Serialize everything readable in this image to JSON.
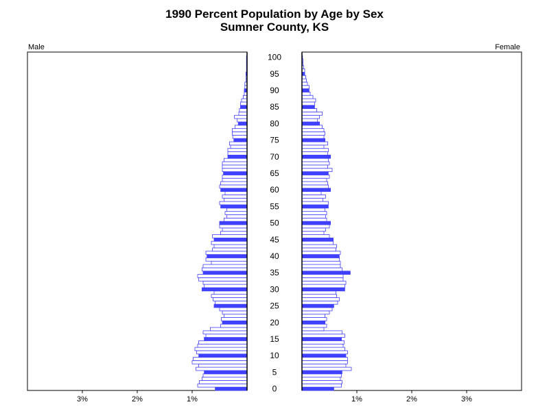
{
  "chart_data": {
    "type": "bar",
    "title": "1990 Percent Population by Age by Sex",
    "subtitle": "Sumner County, KS",
    "left_label": "Male",
    "right_label": "Female",
    "xlim": [
      0,
      4
    ],
    "x_ticks": [
      1,
      2,
      3
    ],
    "x_tick_labels": [
      "1%",
      "2%",
      "3%"
    ],
    "age_labels": [
      0,
      5,
      10,
      15,
      20,
      25,
      30,
      35,
      40,
      45,
      50,
      55,
      60,
      65,
      70,
      75,
      80,
      85,
      90,
      95,
      100
    ],
    "highlight_every": 5,
    "colors": {
      "bar_fill": "#ffffff",
      "bar_stroke": "#4040ff",
      "highlight": "#4040ff",
      "axis": "#000000"
    },
    "series": [
      {
        "name": "Male",
        "ages": [
          0,
          1,
          2,
          3,
          4,
          5,
          6,
          7,
          8,
          9,
          10,
          11,
          12,
          13,
          14,
          15,
          16,
          17,
          18,
          19,
          20,
          21,
          22,
          23,
          24,
          25,
          26,
          27,
          28,
          29,
          30,
          31,
          32,
          33,
          34,
          35,
          36,
          37,
          38,
          39,
          40,
          41,
          42,
          43,
          44,
          45,
          46,
          47,
          48,
          49,
          50,
          51,
          52,
          53,
          54,
          55,
          56,
          57,
          58,
          59,
          60,
          61,
          62,
          63,
          64,
          65,
          66,
          67,
          68,
          69,
          70,
          71,
          72,
          73,
          74,
          75,
          76,
          77,
          78,
          79,
          80,
          81,
          82,
          83,
          84,
          85,
          86,
          87,
          88,
          89,
          90,
          91,
          92,
          93,
          94,
          95,
          96,
          97,
          98,
          99,
          100
        ],
        "values": [
          0.58,
          0.9,
          0.87,
          0.82,
          0.8,
          0.78,
          0.93,
          0.88,
          1.0,
          0.98,
          0.88,
          0.92,
          0.95,
          0.9,
          0.88,
          0.78,
          0.75,
          0.8,
          0.67,
          0.48,
          0.45,
          0.47,
          0.42,
          0.45,
          0.5,
          0.6,
          0.58,
          0.62,
          0.65,
          0.6,
          0.82,
          0.78,
          0.8,
          0.88,
          0.9,
          0.8,
          0.82,
          0.8,
          0.65,
          0.75,
          0.73,
          0.75,
          0.63,
          0.6,
          0.65,
          0.6,
          0.63,
          0.48,
          0.45,
          0.5,
          0.5,
          0.42,
          0.37,
          0.4,
          0.37,
          0.48,
          0.5,
          0.42,
          0.45,
          0.4,
          0.48,
          0.5,
          0.48,
          0.45,
          0.45,
          0.43,
          0.45,
          0.45,
          0.45,
          0.42,
          0.35,
          0.35,
          0.35,
          0.3,
          0.32,
          0.24,
          0.26,
          0.27,
          0.27,
          0.22,
          0.16,
          0.18,
          0.23,
          0.15,
          0.14,
          0.12,
          0.12,
          0.1,
          0.07,
          0.05,
          0.05,
          0.04,
          0.04,
          0.02,
          0.02,
          0.02,
          0.01,
          0.01,
          0.01,
          0.01,
          0.01
        ]
      },
      {
        "name": "Female",
        "ages": [
          0,
          1,
          2,
          3,
          4,
          5,
          6,
          7,
          8,
          9,
          10,
          11,
          12,
          13,
          14,
          15,
          16,
          17,
          18,
          19,
          20,
          21,
          22,
          23,
          24,
          25,
          26,
          27,
          28,
          29,
          30,
          31,
          32,
          33,
          34,
          35,
          36,
          37,
          38,
          39,
          40,
          41,
          42,
          43,
          44,
          45,
          46,
          47,
          48,
          49,
          50,
          51,
          52,
          53,
          54,
          55,
          56,
          57,
          58,
          59,
          60,
          61,
          62,
          63,
          64,
          65,
          66,
          67,
          68,
          69,
          70,
          71,
          72,
          73,
          74,
          75,
          76,
          77,
          78,
          79,
          80,
          81,
          82,
          83,
          84,
          85,
          86,
          87,
          88,
          89,
          90,
          91,
          92,
          93,
          94,
          95,
          96,
          97,
          98,
          99,
          100
        ],
        "values": [
          0.58,
          0.72,
          0.73,
          0.7,
          0.72,
          0.73,
          0.9,
          0.8,
          0.83,
          0.83,
          0.8,
          0.83,
          0.78,
          0.75,
          0.77,
          0.72,
          0.78,
          0.73,
          0.4,
          0.45,
          0.42,
          0.45,
          0.42,
          0.5,
          0.55,
          0.58,
          0.65,
          0.68,
          0.63,
          0.62,
          0.78,
          0.78,
          0.8,
          0.75,
          0.75,
          0.88,
          0.73,
          0.7,
          0.7,
          0.68,
          0.68,
          0.7,
          0.62,
          0.63,
          0.57,
          0.57,
          0.5,
          0.4,
          0.43,
          0.5,
          0.52,
          0.45,
          0.43,
          0.45,
          0.42,
          0.48,
          0.48,
          0.38,
          0.43,
          0.35,
          0.52,
          0.48,
          0.47,
          0.45,
          0.5,
          0.48,
          0.55,
          0.47,
          0.5,
          0.48,
          0.52,
          0.47,
          0.48,
          0.4,
          0.47,
          0.42,
          0.4,
          0.42,
          0.4,
          0.37,
          0.32,
          0.28,
          0.32,
          0.37,
          0.27,
          0.23,
          0.23,
          0.25,
          0.2,
          0.15,
          0.13,
          0.13,
          0.1,
          0.08,
          0.07,
          0.05,
          0.05,
          0.03,
          0.02,
          0.02,
          0.01
        ]
      }
    ]
  }
}
